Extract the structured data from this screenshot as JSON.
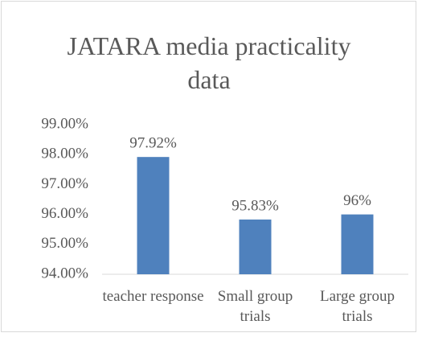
{
  "chart_data": {
    "type": "bar",
    "title": "JATARA media practicality data",
    "categories": [
      "teacher response",
      "Small group trials",
      "Large group trials"
    ],
    "values": [
      97.92,
      95.83,
      96
    ],
    "value_labels": [
      "97.92%",
      "95.83%",
      "96%"
    ],
    "color": "#4f81bd",
    "ylim": [
      94,
      99
    ],
    "yticks": [
      {
        "value": 94,
        "label": "94.00%"
      },
      {
        "value": 95,
        "label": "95.00%"
      },
      {
        "value": 96,
        "label": "96.00%"
      },
      {
        "value": 97,
        "label": "97.00%"
      },
      {
        "value": 98,
        "label": "98.00%"
      },
      {
        "value": 99,
        "label": "99.00%"
      }
    ],
    "grid": false
  }
}
